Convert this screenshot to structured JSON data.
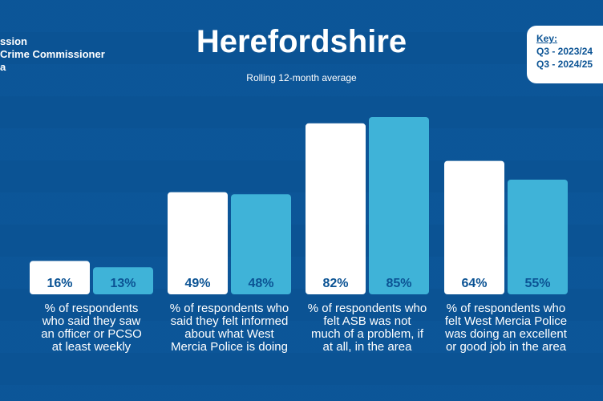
{
  "header": {
    "logo_text": "ssion\nCrime Commissioner\na",
    "title": "Herefordshire",
    "subtitle": "Rolling 12-month average"
  },
  "key": {
    "title": "Key:",
    "items": [
      "Q3 - 2023/24",
      "Q3 - 2024/25"
    ]
  },
  "colors": {
    "background": "#0b5394",
    "series_2023": "#ffffff",
    "series_2024": "#3fb3d8",
    "label_text": "#0b5394"
  },
  "chart_data": {
    "type": "bar",
    "title": "Herefordshire",
    "subtitle": "Rolling 12-month average",
    "categories": [
      "% of respondents who said they saw an officer or PCSO at least weekly",
      "% of respondents who said they felt informed about what West Mercia Police is doing",
      "% of respondents who felt ASB was not much of a problem, if at all, in the area",
      "% of respondents who felt West Mercia Police was doing an excellent or good job in the area"
    ],
    "series": [
      {
        "name": "Q3 - 2023/24",
        "values": [
          16,
          49,
          82,
          64
        ]
      },
      {
        "name": "Q3 - 2024/25",
        "values": [
          13,
          48,
          85,
          55
        ]
      }
    ],
    "data_labels": [
      [
        "16%",
        "49%",
        "82%",
        "64%"
      ],
      [
        "13%",
        "48%",
        "85%",
        "55%"
      ]
    ],
    "ylim": [
      0,
      100
    ],
    "legend": "top-right"
  }
}
